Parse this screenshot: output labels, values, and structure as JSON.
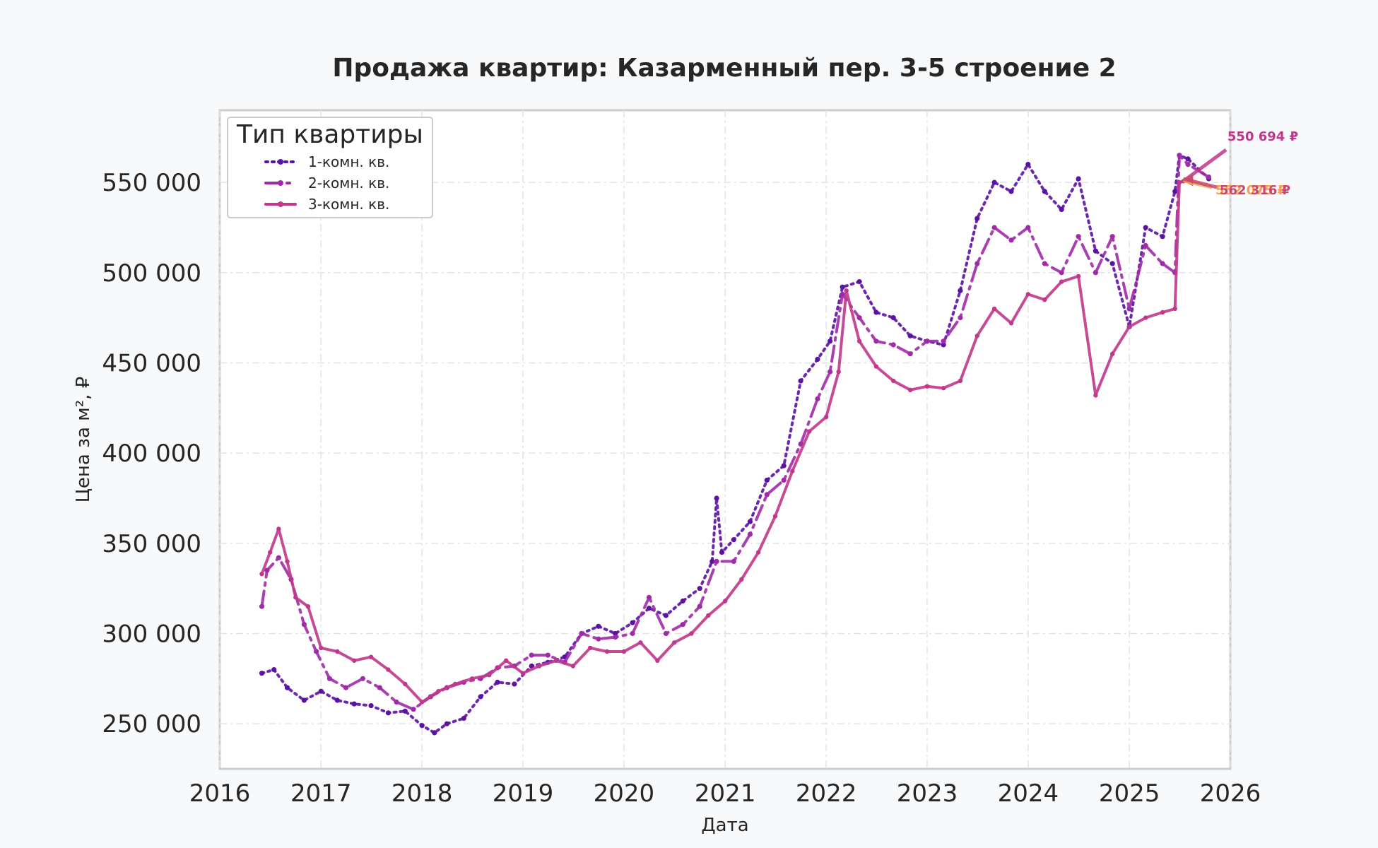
{
  "chart_data": {
    "type": "line",
    "title": "Продажа квартир: Казарменный пер. 3-5 строение 2",
    "xlabel": "Дата",
    "ylabel": "Цена за м², ₽",
    "xlim": [
      "2016-01-01",
      "2026-01-01"
    ],
    "ylim": [
      225000,
      590000
    ],
    "x_ticks": [
      "2016",
      "2017",
      "2018",
      "2019",
      "2020",
      "2021",
      "2022",
      "2023",
      "2024",
      "2025",
      "2026"
    ],
    "y_ticks": [
      "250 000",
      "300 000",
      "350 000",
      "400 000",
      "450 000",
      "500 000",
      "550 000"
    ],
    "y_tick_values": [
      250000,
      300000,
      350000,
      400000,
      450000,
      500000,
      550000
    ],
    "grid": true,
    "legend": {
      "title": "Тип квартиры",
      "position": "top-left"
    },
    "series": [
      {
        "name": "1-комн. кв.",
        "color": "#5b11a6",
        "style": "dotted",
        "points": [
          [
            "2016-06-01",
            278000
          ],
          [
            "2016-07-15",
            280000
          ],
          [
            "2016-09-01",
            270000
          ],
          [
            "2016-11-01",
            263000
          ],
          [
            "2017-01-01",
            268000
          ],
          [
            "2017-03-01",
            263000
          ],
          [
            "2017-05-01",
            261000
          ],
          [
            "2017-07-01",
            260000
          ],
          [
            "2017-09-01",
            256000
          ],
          [
            "2017-11-01",
            257000
          ],
          [
            "2018-01-01",
            249000
          ],
          [
            "2018-02-15",
            245000
          ],
          [
            "2018-04-01",
            250000
          ],
          [
            "2018-06-01",
            253000
          ],
          [
            "2018-08-01",
            265000
          ],
          [
            "2018-10-01",
            273000
          ],
          [
            "2018-12-01",
            272000
          ],
          [
            "2019-02-01",
            282000
          ],
          [
            "2019-04-01",
            284000
          ],
          [
            "2019-06-01",
            287000
          ],
          [
            "2019-08-01",
            300000
          ],
          [
            "2019-10-01",
            304000
          ],
          [
            "2019-12-01",
            300000
          ],
          [
            "2020-02-01",
            306000
          ],
          [
            "2020-04-01",
            314000
          ],
          [
            "2020-06-01",
            310000
          ],
          [
            "2020-08-01",
            318000
          ],
          [
            "2020-10-01",
            325000
          ],
          [
            "2020-11-15",
            340000
          ],
          [
            "2020-12-01",
            375000
          ],
          [
            "2020-12-20",
            345000
          ],
          [
            "2021-02-01",
            352000
          ],
          [
            "2021-04-01",
            362000
          ],
          [
            "2021-06-01",
            385000
          ],
          [
            "2021-08-01",
            393000
          ],
          [
            "2021-10-01",
            440000
          ],
          [
            "2021-12-01",
            452000
          ],
          [
            "2022-01-15",
            462000
          ],
          [
            "2022-03-01",
            492000
          ],
          [
            "2022-05-01",
            495000
          ],
          [
            "2022-07-01",
            478000
          ],
          [
            "2022-09-01",
            475000
          ],
          [
            "2022-11-01",
            465000
          ],
          [
            "2023-01-01",
            462000
          ],
          [
            "2023-03-01",
            460000
          ],
          [
            "2023-05-01",
            490000
          ],
          [
            "2023-07-01",
            530000
          ],
          [
            "2023-09-01",
            550000
          ],
          [
            "2023-11-01",
            545000
          ],
          [
            "2024-01-01",
            560000
          ],
          [
            "2024-03-01",
            545000
          ],
          [
            "2024-05-01",
            535000
          ],
          [
            "2024-07-01",
            552000
          ],
          [
            "2024-09-01",
            512000
          ],
          [
            "2024-11-01",
            505000
          ],
          [
            "2025-01-01",
            470000
          ],
          [
            "2025-03-01",
            525000
          ],
          [
            "2025-05-01",
            520000
          ],
          [
            "2025-06-15",
            545000
          ],
          [
            "2025-07-01",
            565000
          ],
          [
            "2025-08-01",
            563000
          ],
          [
            "2025-10-15",
            552000
          ]
        ]
      },
      {
        "name": "2-комн. кв.",
        "color": "#a12aa8",
        "style": "dashdot",
        "points": [
          [
            "2016-06-01",
            315000
          ],
          [
            "2016-06-20",
            335000
          ],
          [
            "2016-08-01",
            342000
          ],
          [
            "2016-09-15",
            330000
          ],
          [
            "2016-11-01",
            305000
          ],
          [
            "2016-12-15",
            290000
          ],
          [
            "2017-02-01",
            275000
          ],
          [
            "2017-04-01",
            270000
          ],
          [
            "2017-06-01",
            275000
          ],
          [
            "2017-08-01",
            270000
          ],
          [
            "2017-10-01",
            262000
          ],
          [
            "2017-12-01",
            258000
          ],
          [
            "2018-02-01",
            265000
          ],
          [
            "2018-04-01",
            270000
          ],
          [
            "2018-06-01",
            273000
          ],
          [
            "2018-08-01",
            275000
          ],
          [
            "2018-10-01",
            281000
          ],
          [
            "2018-12-01",
            282000
          ],
          [
            "2019-02-01",
            288000
          ],
          [
            "2019-04-01",
            288000
          ],
          [
            "2019-06-01",
            284000
          ],
          [
            "2019-08-01",
            300000
          ],
          [
            "2019-10-01",
            297000
          ],
          [
            "2019-12-01",
            298000
          ],
          [
            "2020-02-01",
            300000
          ],
          [
            "2020-04-01",
            320000
          ],
          [
            "2020-06-01",
            300000
          ],
          [
            "2020-08-01",
            305000
          ],
          [
            "2020-10-01",
            315000
          ],
          [
            "2020-12-01",
            340000
          ],
          [
            "2021-02-01",
            340000
          ],
          [
            "2021-04-01",
            355000
          ],
          [
            "2021-06-01",
            377000
          ],
          [
            "2021-08-01",
            385000
          ],
          [
            "2021-10-01",
            405000
          ],
          [
            "2021-12-01",
            430000
          ],
          [
            "2022-01-15",
            445000
          ],
          [
            "2022-03-01",
            488000
          ],
          [
            "2022-05-01",
            475000
          ],
          [
            "2022-07-01",
            462000
          ],
          [
            "2022-09-01",
            460000
          ],
          [
            "2022-11-01",
            455000
          ],
          [
            "2023-01-01",
            462000
          ],
          [
            "2023-03-01",
            462000
          ],
          [
            "2023-05-01",
            475000
          ],
          [
            "2023-07-01",
            505000
          ],
          [
            "2023-09-01",
            525000
          ],
          [
            "2023-11-01",
            518000
          ],
          [
            "2024-01-01",
            525000
          ],
          [
            "2024-03-01",
            505000
          ],
          [
            "2024-05-01",
            500000
          ],
          [
            "2024-07-01",
            520000
          ],
          [
            "2024-09-01",
            500000
          ],
          [
            "2024-11-01",
            520000
          ],
          [
            "2025-01-01",
            480000
          ],
          [
            "2025-03-01",
            515000
          ],
          [
            "2025-05-01",
            505000
          ],
          [
            "2025-06-15",
            500000
          ],
          [
            "2025-07-01",
            565000
          ],
          [
            "2025-08-01",
            560000
          ],
          [
            "2025-10-15",
            553000
          ]
        ]
      },
      {
        "name": "3-комн. кв.",
        "color": "#c0378c",
        "style": "solid-markers",
        "points": [
          [
            "2016-06-01",
            333000
          ],
          [
            "2016-07-01",
            345000
          ],
          [
            "2016-08-01",
            358000
          ],
          [
            "2016-09-01",
            340000
          ],
          [
            "2016-10-01",
            320000
          ],
          [
            "2016-11-15",
            315000
          ],
          [
            "2017-01-01",
            292000
          ],
          [
            "2017-03-01",
            290000
          ],
          [
            "2017-05-01",
            285000
          ],
          [
            "2017-07-01",
            287000
          ],
          [
            "2017-09-01",
            280000
          ],
          [
            "2017-11-01",
            272000
          ],
          [
            "2018-01-01",
            262000
          ],
          [
            "2018-03-01",
            268000
          ],
          [
            "2018-05-01",
            272000
          ],
          [
            "2018-07-01",
            275000
          ],
          [
            "2018-09-01",
            277000
          ],
          [
            "2018-11-01",
            285000
          ],
          [
            "2019-01-01",
            278000
          ],
          [
            "2019-03-01",
            282000
          ],
          [
            "2019-05-01",
            285000
          ],
          [
            "2019-07-01",
            282000
          ],
          [
            "2019-09-01",
            292000
          ],
          [
            "2019-11-01",
            290000
          ],
          [
            "2020-01-01",
            290000
          ],
          [
            "2020-03-01",
            295000
          ],
          [
            "2020-05-01",
            285000
          ],
          [
            "2020-07-01",
            295000
          ],
          [
            "2020-09-01",
            300000
          ],
          [
            "2020-11-01",
            310000
          ],
          [
            "2021-01-01",
            318000
          ],
          [
            "2021-03-01",
            330000
          ],
          [
            "2021-05-01",
            345000
          ],
          [
            "2021-07-01",
            365000
          ],
          [
            "2021-09-01",
            390000
          ],
          [
            "2021-11-01",
            412000
          ],
          [
            "2022-01-01",
            420000
          ],
          [
            "2022-02-15",
            445000
          ],
          [
            "2022-03-15",
            490000
          ],
          [
            "2022-05-01",
            462000
          ],
          [
            "2022-07-01",
            448000
          ],
          [
            "2022-09-01",
            440000
          ],
          [
            "2022-11-01",
            435000
          ],
          [
            "2023-01-01",
            437000
          ],
          [
            "2023-03-01",
            436000
          ],
          [
            "2023-05-01",
            440000
          ],
          [
            "2023-07-01",
            465000
          ],
          [
            "2023-09-01",
            480000
          ],
          [
            "2023-11-01",
            472000
          ],
          [
            "2024-01-01",
            488000
          ],
          [
            "2024-03-01",
            485000
          ],
          [
            "2024-05-01",
            495000
          ],
          [
            "2024-07-01",
            498000
          ],
          [
            "2024-09-01",
            432000
          ],
          [
            "2024-11-01",
            455000
          ],
          [
            "2025-01-01",
            470000
          ],
          [
            "2025-03-01",
            475000
          ],
          [
            "2025-05-01",
            478000
          ],
          [
            "2025-06-15",
            480000
          ],
          [
            "2025-07-01",
            550000
          ],
          [
            "2025-07-15",
            550694
          ]
        ]
      }
    ],
    "annotations": [
      {
        "text": "550 694 ₽",
        "color": "#c0378c",
        "anchor": [
          "2025-07-15",
          550694
        ]
      },
      {
        "text": "552 075 ₽",
        "color": "#f5a050",
        "anchor": [
          "2025-07-15",
          551000
        ]
      },
      {
        "text": "562 316 ₽",
        "color": "#c8496e",
        "anchor": [
          "2025-07-15",
          552000
        ]
      }
    ]
  }
}
